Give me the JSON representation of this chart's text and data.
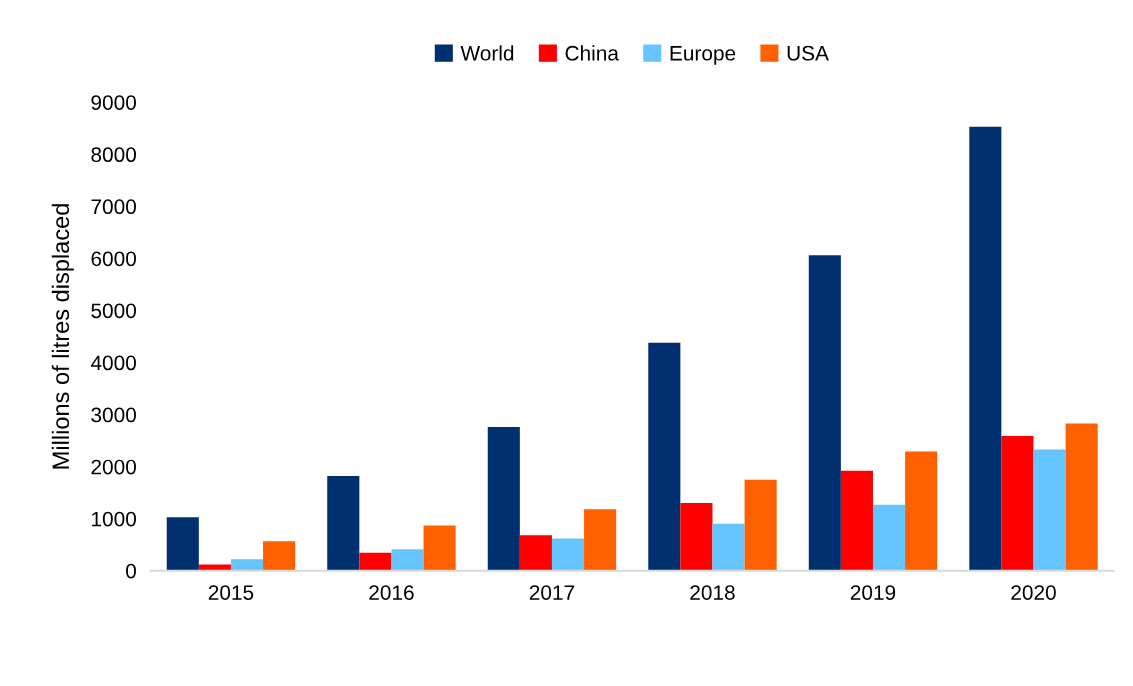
{
  "chart_data": {
    "type": "bar",
    "ylabel": "Millions of litres displaced",
    "categories": [
      "2015",
      "2016",
      "2017",
      "2018",
      "2019",
      "2020"
    ],
    "series": [
      {
        "name": "World",
        "color": "#003070",
        "values": [
          1030,
          1820,
          2760,
          4380,
          6060,
          8530
        ]
      },
      {
        "name": "China",
        "color": "#ff0000",
        "values": [
          120,
          345,
          680,
          1300,
          1920,
          2590
        ]
      },
      {
        "name": "Europe",
        "color": "#66c5ff",
        "values": [
          220,
          415,
          620,
          905,
          1270,
          2330
        ]
      },
      {
        "name": "USA",
        "color": "#ff6000",
        "values": [
          565,
          870,
          1180,
          1750,
          2290,
          2830
        ]
      }
    ],
    "ylim": [
      0,
      9000
    ],
    "yticks": [
      0,
      1000,
      2000,
      3000,
      4000,
      5000,
      6000,
      7000,
      8000,
      9000
    ],
    "grid": false,
    "legend": "top"
  }
}
